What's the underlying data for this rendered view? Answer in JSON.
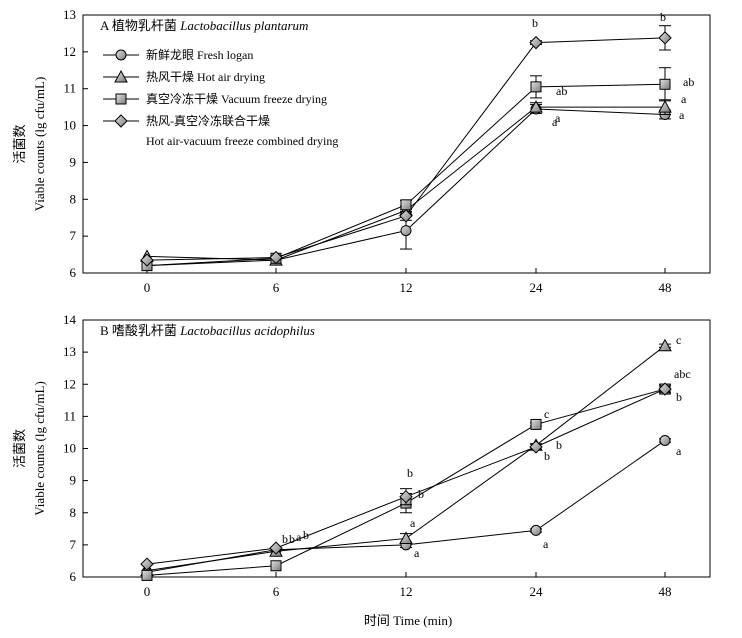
{
  "x_axis_title": "时间 Time (min)",
  "chart_data": [
    {
      "type": "line",
      "title": "A",
      "title_cn": "植物乳杆菌",
      "title_latin": "Lactobacillus plantarum",
      "ylabel_cn": "活菌数",
      "ylabel": "Viable counts (lg cfu/mL)",
      "categories": [
        "0",
        "6",
        "12",
        "24",
        "48"
      ],
      "ylim": [
        6,
        13
      ],
      "yticks": [
        6,
        7,
        8,
        9,
        10,
        11,
        12,
        13
      ],
      "legend_position": "top-left",
      "series": [
        {
          "name": "新鲜龙眼 Fresh logan",
          "marker": "circle",
          "values": [
            6.2,
            6.35,
            7.15,
            10.45,
            10.3
          ],
          "errors": [
            0,
            0,
            0.5,
            0.12,
            0.12
          ],
          "letters": [
            "",
            "",
            "",
            "a",
            "a"
          ]
        },
        {
          "name": "热风干燥 Hot air drying",
          "marker": "triangle",
          "values": [
            6.45,
            6.35,
            7.7,
            10.5,
            10.5
          ],
          "errors": [
            0,
            0,
            0.12,
            0.12,
            0.2
          ],
          "letters": [
            "",
            "",
            "",
            "a",
            "a"
          ]
        },
        {
          "name": "真空冷冻干燥 Vacuum freeze drying",
          "marker": "square",
          "values": [
            6.2,
            6.4,
            7.85,
            11.05,
            11.12
          ],
          "errors": [
            0,
            0,
            0.12,
            0.3,
            0.45
          ],
          "letters": [
            "",
            "",
            "",
            "ab",
            "ab"
          ]
        },
        {
          "name": "热风-真空冷冻联合干燥",
          "name_en": "Hot air-vacuum freeze combined drying",
          "marker": "diamond",
          "values": [
            6.35,
            6.42,
            7.55,
            12.25,
            12.38
          ],
          "errors": [
            0,
            0,
            0.12,
            0.05,
            0.33
          ],
          "letters": [
            "",
            "",
            "",
            "b",
            "b"
          ]
        }
      ]
    },
    {
      "type": "line",
      "title": "B",
      "title_cn": "嗜酸乳杆菌",
      "title_latin": "Lactobacillus acidophilus",
      "ylabel_cn": "活菌数",
      "ylabel": "Viable counts (lg cfu/mL)",
      "categories": [
        "0",
        "6",
        "12",
        "24",
        "48"
      ],
      "ylim": [
        6,
        14
      ],
      "yticks": [
        6,
        7,
        8,
        9,
        10,
        11,
        12,
        13,
        14
      ],
      "series": [
        {
          "name": "新鲜龙眼 Fresh logan",
          "marker": "circle",
          "values": [
            6.15,
            6.85,
            7.0,
            7.45,
            10.25
          ],
          "errors": [
            0,
            0,
            0.08,
            0.05,
            0.05
          ],
          "letters": [
            "",
            "b",
            "a",
            "a",
            "a"
          ]
        },
        {
          "name": "热风干燥 Hot air drying",
          "marker": "triangle",
          "values": [
            6.2,
            6.8,
            7.2,
            10.1,
            13.2
          ],
          "errors": [
            0,
            0,
            0.15,
            0.05,
            0.05
          ],
          "letters": [
            "",
            "b",
            "a",
            "b",
            "c"
          ]
        },
        {
          "name": "真空冷冻干燥 Vacuum freeze drying",
          "marker": "square",
          "values": [
            6.05,
            6.35,
            8.3,
            10.75,
            11.85
          ],
          "errors": [
            0,
            0,
            0.3,
            0.05,
            0.15
          ],
          "letters": [
            "",
            "a",
            "b",
            "c",
            "abc"
          ]
        },
        {
          "name": "热风-真空冷冻联合干燥",
          "marker": "diamond",
          "values": [
            6.4,
            6.9,
            8.5,
            10.05,
            11.85
          ],
          "errors": [
            0,
            0,
            0.25,
            0.08,
            0.1
          ],
          "letters": [
            "",
            "b",
            "b",
            "b",
            "b"
          ]
        }
      ]
    }
  ]
}
